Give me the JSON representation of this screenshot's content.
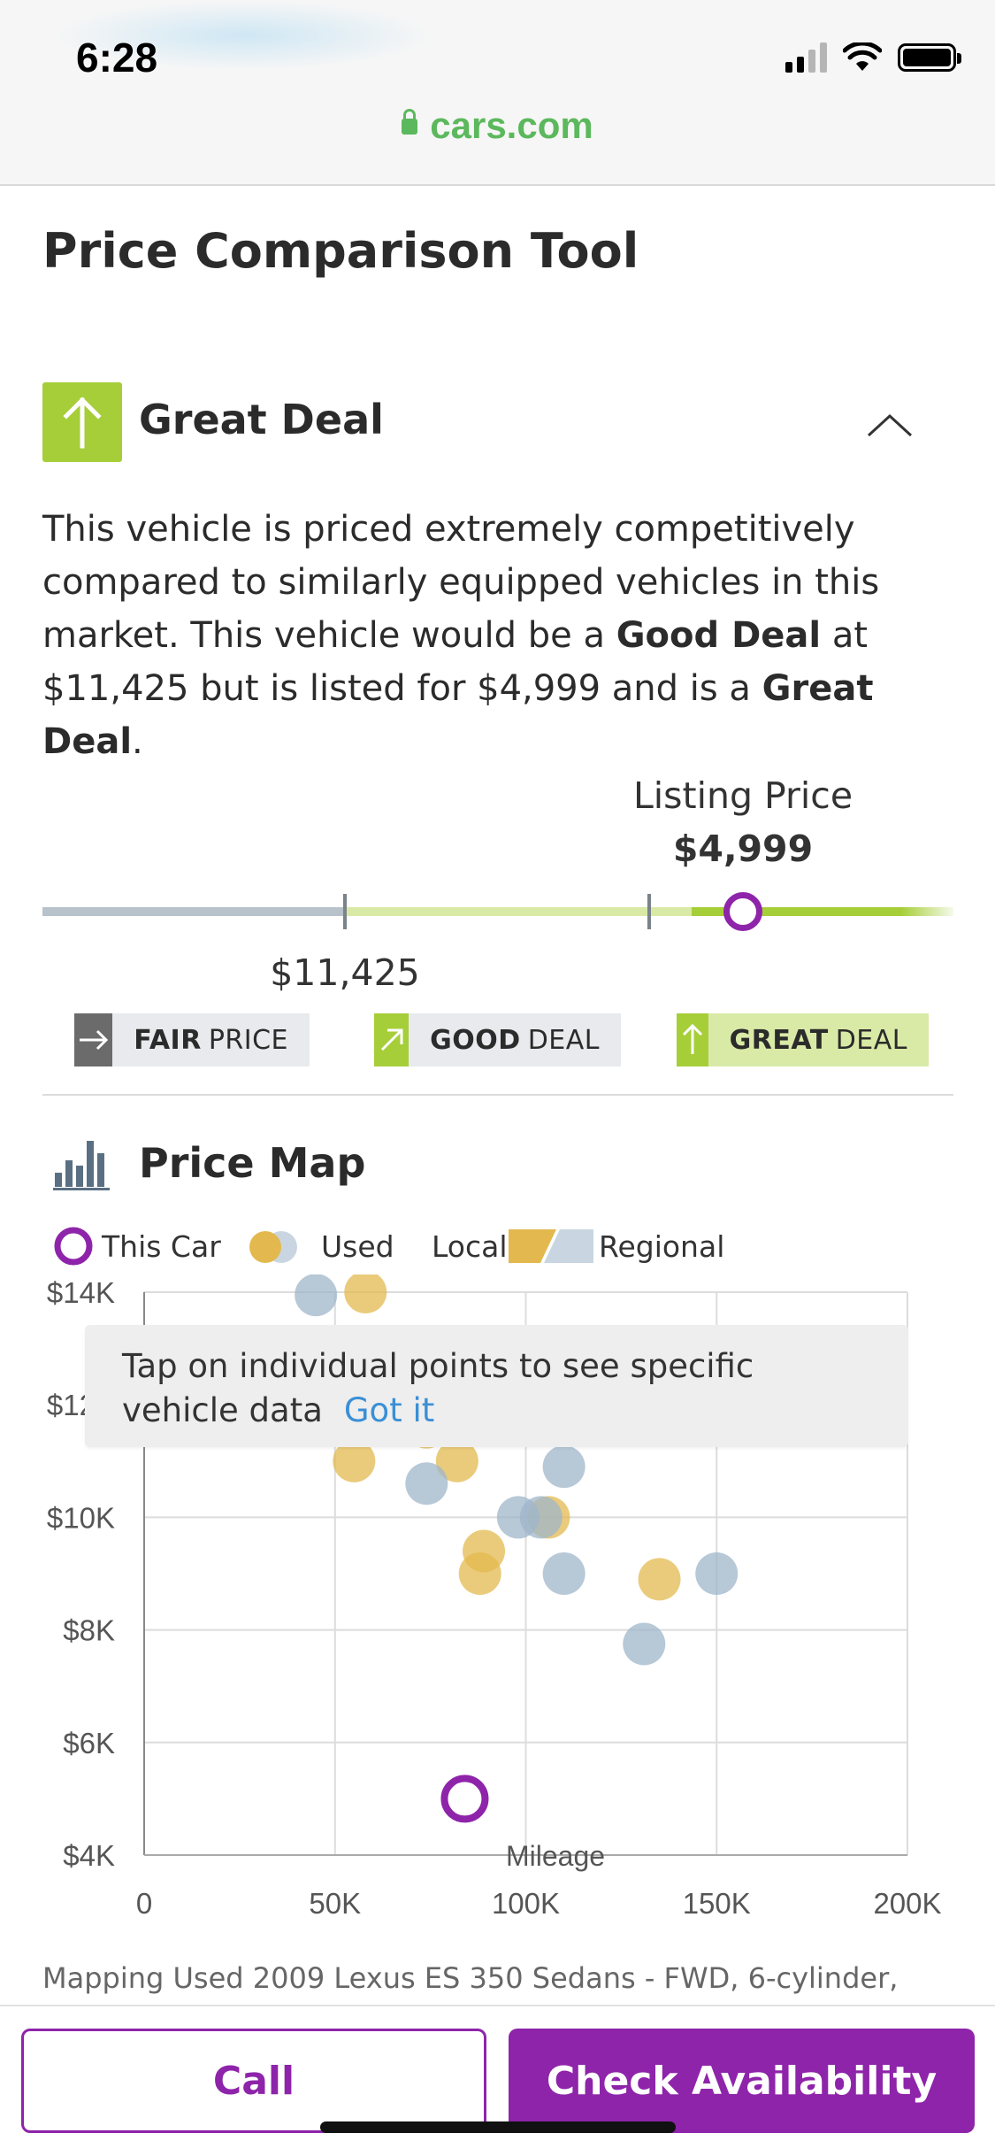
{
  "status_bar": {
    "time": "6:28"
  },
  "browser": {
    "url": "cars.com"
  },
  "page": {
    "title": "Price Comparison Tool"
  },
  "deal": {
    "rating": "Great Deal",
    "desc_part1": "This vehicle is priced extremely competitively compared to similarly equipped vehicles in this market. This vehicle would be a ",
    "desc_bold1": "Good Deal",
    "desc_part2": " at $11,425 but is listed for $4,999 and is a ",
    "desc_bold2": "Great Deal",
    "desc_part3": "."
  },
  "price_scale": {
    "listing_label": "Listing Price",
    "listing_value": "$4,999",
    "threshold_value": "$11,425",
    "tags": [
      {
        "bold": "FAIR",
        "rest": "PRICE"
      },
      {
        "bold": "GOOD",
        "rest": "DEAL"
      },
      {
        "bold": "GREAT",
        "rest": "DEAL"
      }
    ]
  },
  "price_map": {
    "title": "Price Map",
    "legend": {
      "this_car": "This Car",
      "used": "Used",
      "local": "Local",
      "regional": "Regional"
    },
    "tooltip": {
      "text": "Tap on individual points to see specific vehicle data",
      "action": "Got it"
    },
    "mapping_text": "Mapping Used 2009 Lexus ES 350 Sedans - FWD, 6-cylinder,"
  },
  "colors": {
    "accent": "#8e24aa",
    "great": "#a6ce39",
    "local_point": "#e3b94f",
    "regional_point": "#9fb6c9",
    "url_green": "#5cb85c"
  },
  "chart_data": {
    "type": "scatter",
    "xlabel": "Mileage",
    "ylabel": "",
    "xlim": [
      0,
      200000
    ],
    "ylim": [
      4000,
      14000
    ],
    "x_ticks": [
      "0",
      "50K",
      "100K",
      "150K",
      "200K"
    ],
    "x_tick_values": [
      0,
      50000,
      100000,
      150000,
      200000
    ],
    "y_ticks": [
      "$14K",
      "$12K",
      "$10K",
      "$8K",
      "$6K",
      "$4K"
    ],
    "y_tick_values": [
      14000,
      12000,
      10000,
      8000,
      6000,
      4000
    ],
    "grid": true,
    "series": [
      {
        "name": "Local",
        "color": "#e3b94f",
        "points": [
          [
            58000,
            14000
          ],
          [
            55000,
            11000
          ],
          [
            74000,
            11600
          ],
          [
            82000,
            11000
          ],
          [
            89000,
            9400
          ],
          [
            88000,
            9000
          ],
          [
            106000,
            10000
          ],
          [
            135000,
            8900
          ]
        ]
      },
      {
        "name": "Regional",
        "color": "#9fb6c9",
        "points": [
          [
            45000,
            13950
          ],
          [
            74000,
            10600
          ],
          [
            98000,
            10000
          ],
          [
            104000,
            10000
          ],
          [
            110000,
            10900
          ],
          [
            110000,
            9000
          ],
          [
            150000,
            9000
          ],
          [
            131000,
            7750
          ]
        ]
      },
      {
        "name": "This Car",
        "color": "#8e24aa",
        "points": [
          [
            84000,
            5000
          ]
        ]
      }
    ]
  }
}
